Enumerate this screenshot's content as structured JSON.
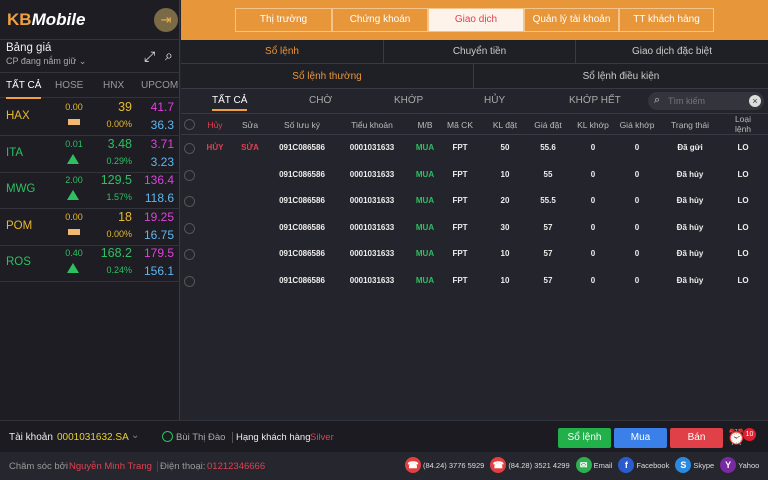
{
  "app": {
    "logo_prefix": "KB",
    "logo_suffix": "Mobile"
  },
  "watchlist": {
    "title": "Bảng giá",
    "subtitle": "CP đang nắm giữ",
    "tabs": [
      "TẤT CẢ",
      "HOSE",
      "HNX",
      "UPCOM"
    ],
    "rows": [
      {
        "symbol": "HAX",
        "change": "0.00",
        "trend": "flat",
        "price": "39",
        "pct": "0.00%",
        "ceiling": "41.7",
        "floor": "36.3",
        "color": "#e8b830"
      },
      {
        "symbol": "ITA",
        "change": "0.01",
        "trend": "up",
        "price": "3.48",
        "pct": "0.29%",
        "ceiling": "3.71",
        "floor": "3.23",
        "color": "#2ec060"
      },
      {
        "symbol": "MWG",
        "change": "2.00",
        "trend": "up",
        "price": "129.5",
        "pct": "1.57%",
        "ceiling": "136.4",
        "floor": "118.6",
        "color": "#2ec060"
      },
      {
        "symbol": "POM",
        "change": "0.00",
        "trend": "flat",
        "price": "18",
        "pct": "0.00%",
        "ceiling": "19.25",
        "floor": "16.75",
        "color": "#e8b830"
      },
      {
        "symbol": "ROS",
        "change": "0.40",
        "trend": "up",
        "price": "168.2",
        "pct": "0.24%",
        "ceiling": "179.5",
        "floor": "156.1",
        "color": "#2ec060"
      }
    ]
  },
  "main_tabs": [
    "Thị trường",
    "Chứng khoán",
    "Giao dịch",
    "Quản lý tài khoản",
    "TT khách hàng"
  ],
  "sub_tabs": [
    "Sổ lệnh",
    "Chuyển tiền",
    "Giao dịch đặc biệt"
  ],
  "order_book_tabs": [
    "Sổ lệnh thường",
    "Sổ lệnh điều kiện"
  ],
  "filter_tabs": [
    "TẤT CẢ",
    "CHỜ",
    "KHỚP",
    "HỦY",
    "KHỚP HẾT"
  ],
  "search": {
    "placeholder": "Tìm kiếm"
  },
  "table": {
    "headers": [
      "Hủy",
      "Sửa",
      "Số lưu ký",
      "Tiểu khoản",
      "M/B",
      "Mã CK",
      "KL đặt",
      "Giá đặt",
      "KL khớp",
      "Giá khớp",
      "Trạng thái",
      "Loại lệnh"
    ],
    "rows": [
      {
        "cancel": "HỦY",
        "edit": "SỬA",
        "custody": "091C086586",
        "sub": "0001031633",
        "side": "MUA",
        "code": "FPT",
        "qty": "50",
        "price": "55.6",
        "mqty": "0",
        "mprice": "0",
        "status": "Đã gửi",
        "type": "LO"
      },
      {
        "cancel": "",
        "edit": "",
        "custody": "091C086586",
        "sub": "0001031633",
        "side": "MUA",
        "code": "FPT",
        "qty": "10",
        "price": "55",
        "mqty": "0",
        "mprice": "0",
        "status": "Đã hủy",
        "type": "LO"
      },
      {
        "cancel": "",
        "edit": "",
        "custody": "091C086586",
        "sub": "0001031633",
        "side": "MUA",
        "code": "FPT",
        "qty": "20",
        "price": "55.5",
        "mqty": "0",
        "mprice": "0",
        "status": "Đã hủy",
        "type": "LO"
      },
      {
        "cancel": "",
        "edit": "",
        "custody": "091C086586",
        "sub": "0001031633",
        "side": "MUA",
        "code": "FPT",
        "qty": "30",
        "price": "57",
        "mqty": "0",
        "mprice": "0",
        "status": "Đã hủy",
        "type": "LO"
      },
      {
        "cancel": "",
        "edit": "",
        "custody": "091C086586",
        "sub": "0001031633",
        "side": "MUA",
        "code": "FPT",
        "qty": "10",
        "price": "57",
        "mqty": "0",
        "mprice": "0",
        "status": "Đã hủy",
        "type": "LO"
      },
      {
        "cancel": "",
        "edit": "",
        "custody": "091C086586",
        "sub": "0001031633",
        "side": "MUA",
        "code": "FPT",
        "qty": "10",
        "price": "57",
        "mqty": "0",
        "mprice": "0",
        "status": "Đã hủy",
        "type": "LO"
      }
    ]
  },
  "footer": {
    "account_label": "Tài khoản",
    "account": "0001031632.SA",
    "user": "Bùi Thị Đào",
    "tier_label": "Hạng khách hàng",
    "tier": "Silver",
    "order_book_btn": "Sổ lệnh",
    "buy_btn": "Mua",
    "sell_btn": "Bán",
    "alarm_count": "10",
    "care_label": "Chăm sóc bởi",
    "care_name": "Nguyễn Minh Trang",
    "phone_label": "Điện thoại:",
    "phone": "01212346666",
    "contacts": [
      {
        "icon": "phone-icon",
        "label": "(84.24) 3776 5929",
        "color": "#e04040",
        "glyph": "☎"
      },
      {
        "icon": "phone-icon",
        "label": "(84.28) 3521 4299",
        "color": "#e04040",
        "glyph": "☎"
      },
      {
        "icon": "email-icon",
        "label": "Email",
        "color": "#2eb050",
        "glyph": "✉"
      },
      {
        "icon": "facebook-icon",
        "label": "Facebook",
        "color": "#2a5cd0",
        "glyph": "f"
      },
      {
        "icon": "skype-icon",
        "label": "Skype",
        "color": "#2a8ae0",
        "glyph": "S"
      },
      {
        "icon": "yahoo-icon",
        "label": "Yahoo",
        "color": "#7a2aa0",
        "glyph": "Y"
      }
    ]
  },
  "colors": {
    "accent": "#e8963a",
    "buy": "#2ec060",
    "ceiling": "#e040e0",
    "floor": "#5fb6f0",
    "cancel": "#e04050"
  }
}
